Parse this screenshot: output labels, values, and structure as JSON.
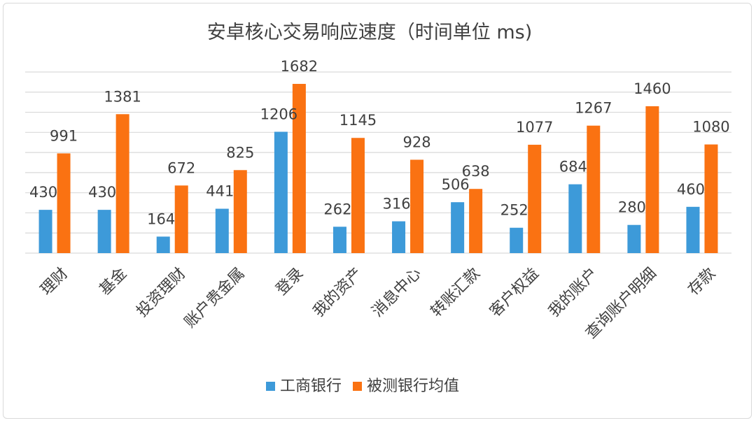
{
  "chart_data": {
    "type": "bar",
    "title": "安卓核心交易响应速度（时间单位 ms)",
    "categories": [
      "理财",
      "基金",
      "投资理财",
      "账户贵金属",
      "登录",
      "我的资产",
      "消息中心",
      "转账汇款",
      "客户权益",
      "我的账户",
      "查询账户明细",
      "存款"
    ],
    "series": [
      {
        "name": "工商银行",
        "color": "#3d9ad9",
        "values": [
          430,
          430,
          164,
          441,
          1206,
          262,
          316,
          506,
          252,
          684,
          280,
          460
        ]
      },
      {
        "name": "被测银行均值",
        "color": "#fa7212",
        "values": [
          991,
          1381,
          672,
          825,
          1682,
          1145,
          928,
          638,
          1077,
          1267,
          1460,
          1080
        ]
      }
    ],
    "ylim": [
      0,
      1800
    ],
    "grid": true,
    "legend_position": "bottom",
    "xlabel": "",
    "ylabel": ""
  }
}
